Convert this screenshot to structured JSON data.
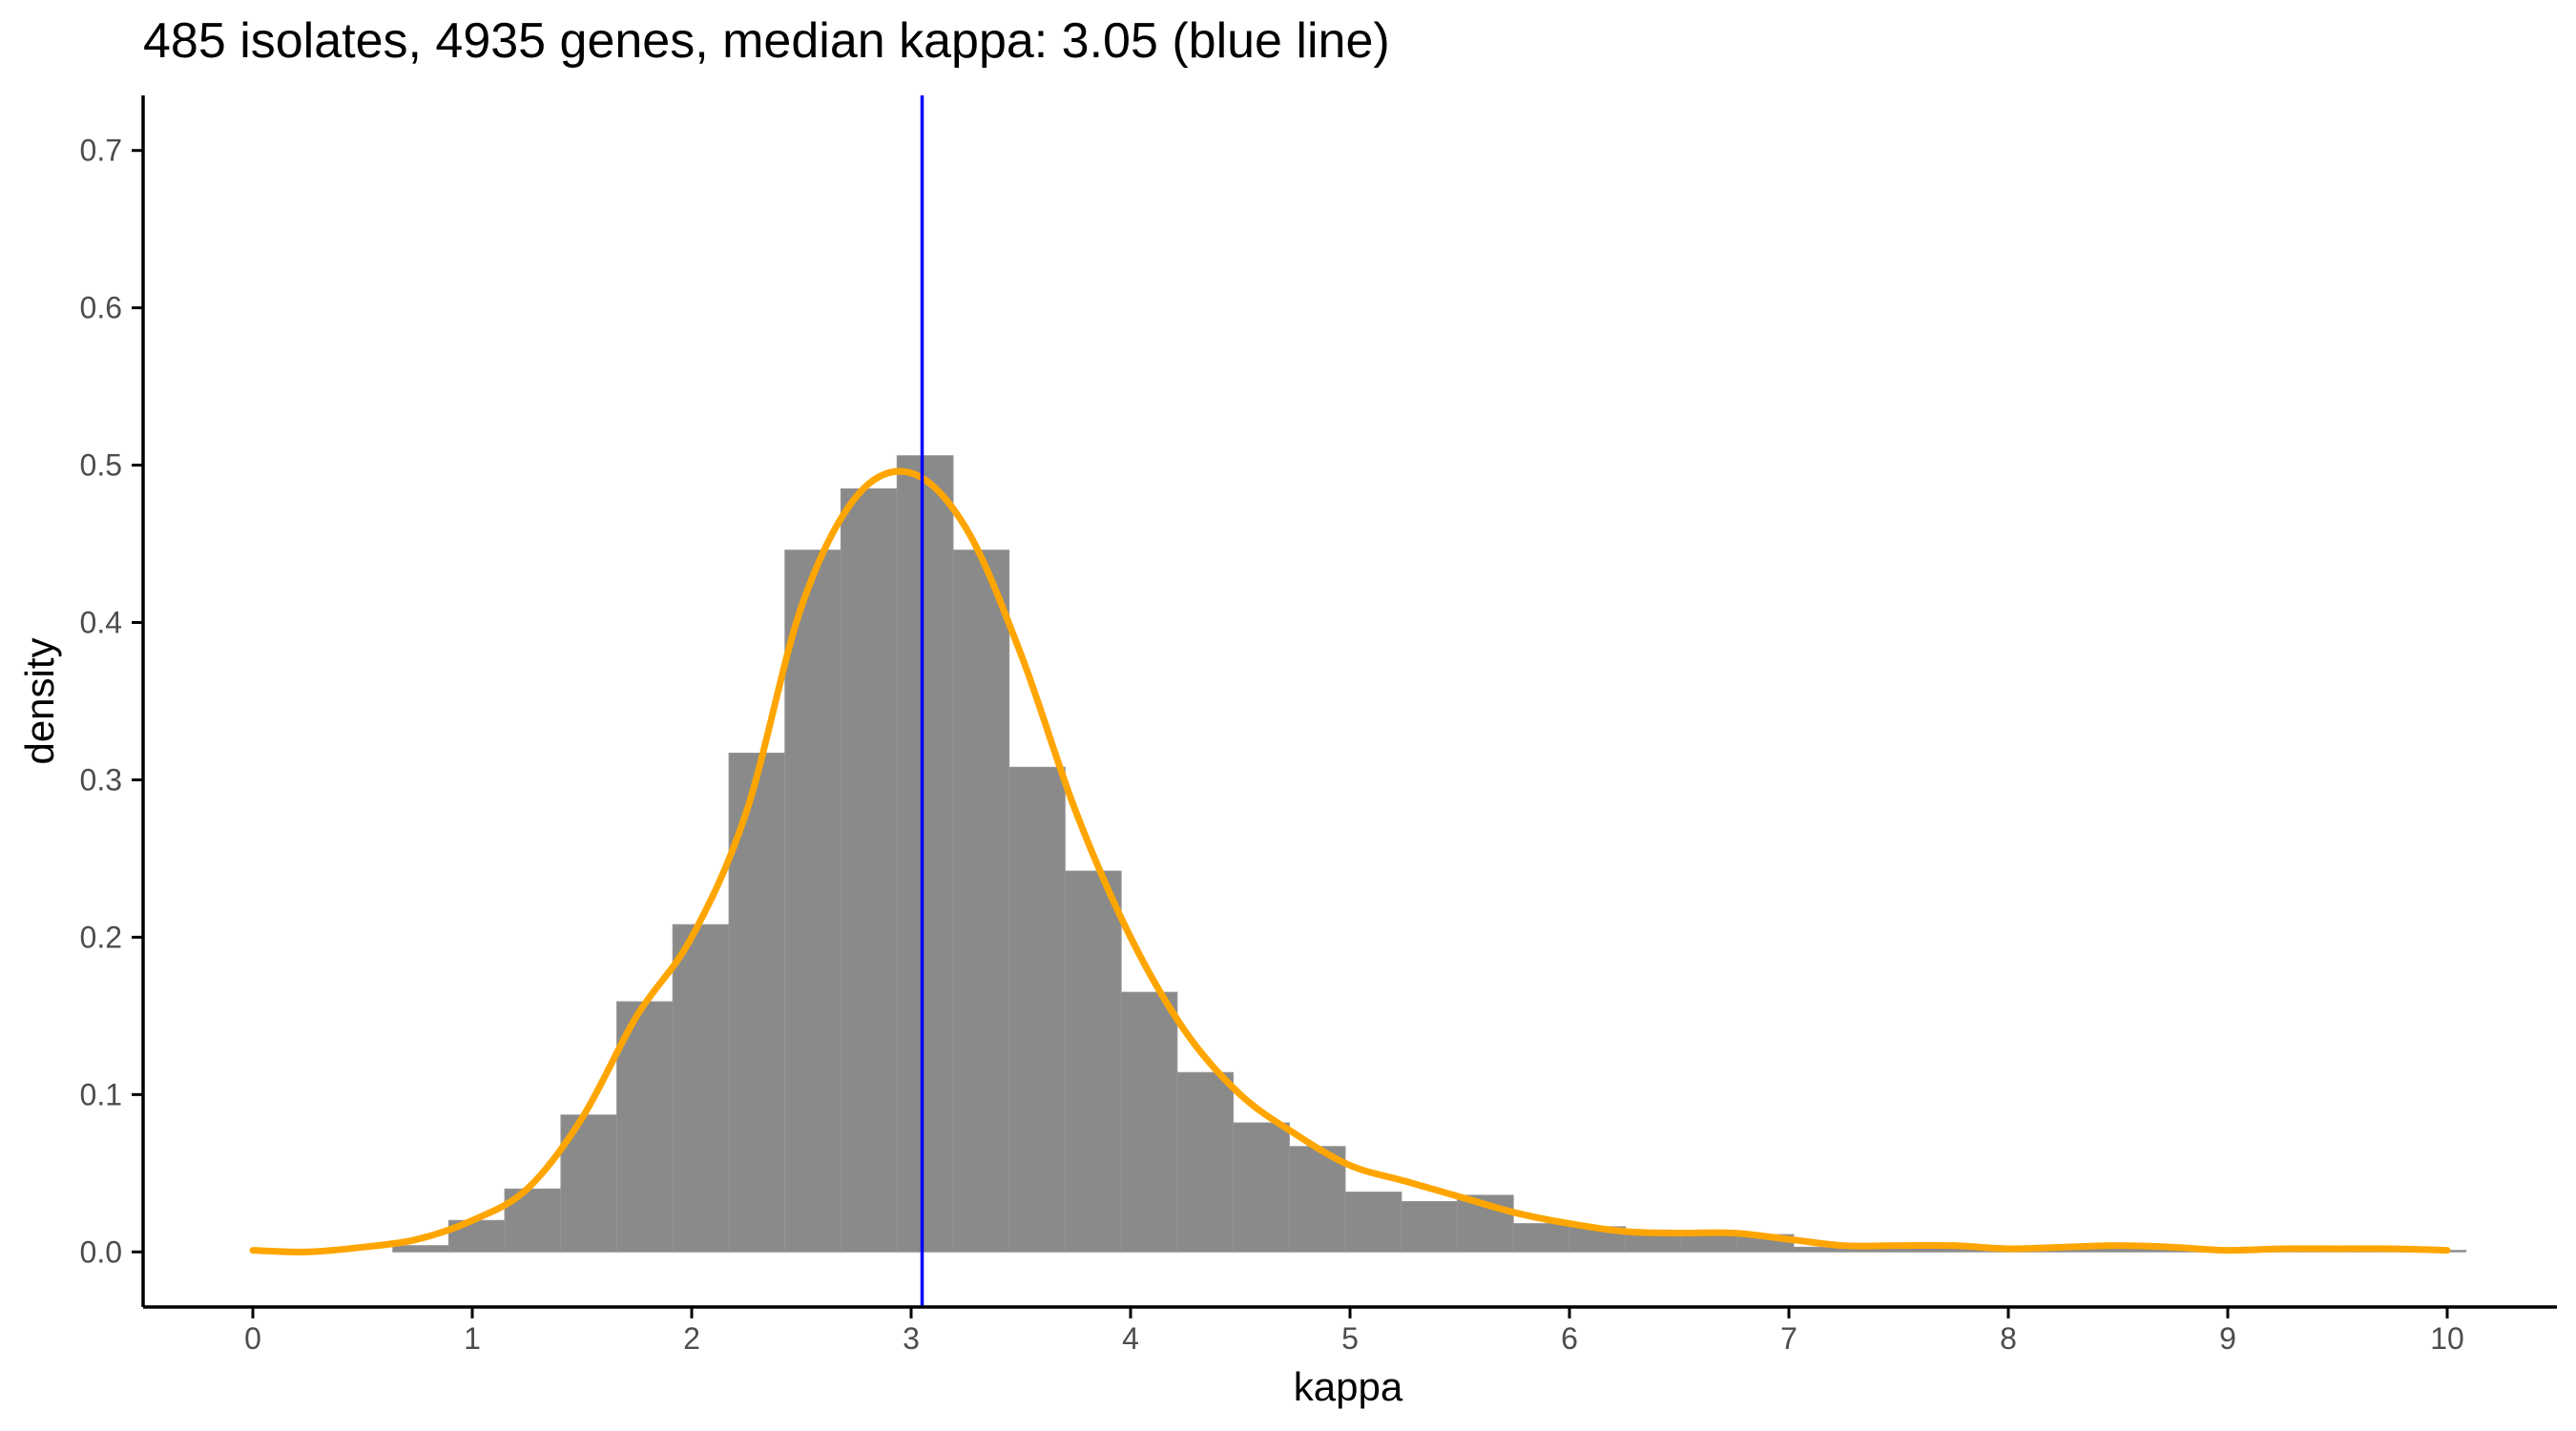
{
  "chart_data": {
    "type": "histogram",
    "title": "485 isolates, 4935 genes, median kappa: 3.05 (blue line)",
    "xlabel": "kappa",
    "ylabel": "density",
    "xlim": [
      -0.5,
      10.5
    ],
    "ylim": [
      -0.035,
      0.735
    ],
    "x_ticks": [
      0,
      1,
      2,
      3,
      4,
      5,
      6,
      7,
      8,
      9,
      10
    ],
    "y_ticks": [
      0.0,
      0.1,
      0.2,
      0.3,
      0.4,
      0.5,
      0.6,
      0.7
    ],
    "x_tick_labels": [
      "0",
      "1",
      "2",
      "3",
      "4",
      "5",
      "6",
      "7",
      "8",
      "9",
      "10"
    ],
    "y_tick_labels": [
      "0.0",
      "0.1",
      "0.2",
      "0.3",
      "0.4",
      "0.5",
      "0.6",
      "0.7"
    ],
    "grid": false,
    "bin_width": 0.2553,
    "bins": [
      {
        "start": 0.638,
        "density": 0.004
      },
      {
        "start": 0.893,
        "density": 0.02
      },
      {
        "start": 1.148,
        "density": 0.04
      },
      {
        "start": 1.404,
        "density": 0.087
      },
      {
        "start": 1.659,
        "density": 0.159
      },
      {
        "start": 1.914,
        "density": 0.208
      },
      {
        "start": 2.17,
        "density": 0.317
      },
      {
        "start": 2.425,
        "density": 0.446
      },
      {
        "start": 2.68,
        "density": 0.485
      },
      {
        "start": 2.936,
        "density": 0.506
      },
      {
        "start": 3.191,
        "density": 0.446
      },
      {
        "start": 3.446,
        "density": 0.308
      },
      {
        "start": 3.702,
        "density": 0.242
      },
      {
        "start": 3.957,
        "density": 0.165
      },
      {
        "start": 4.212,
        "density": 0.114
      },
      {
        "start": 4.468,
        "density": 0.082
      },
      {
        "start": 4.723,
        "density": 0.067
      },
      {
        "start": 4.979,
        "density": 0.038
      },
      {
        "start": 5.234,
        "density": 0.032
      },
      {
        "start": 5.489,
        "density": 0.036
      },
      {
        "start": 5.745,
        "density": 0.018
      },
      {
        "start": 6.0,
        "density": 0.016
      },
      {
        "start": 6.255,
        "density": 0.012
      },
      {
        "start": 6.511,
        "density": 0.013
      },
      {
        "start": 6.766,
        "density": 0.011
      },
      {
        "start": 7.021,
        "density": 0.003
      },
      {
        "start": 7.277,
        "density": 0.003
      },
      {
        "start": 7.532,
        "density": 0.005
      },
      {
        "start": 7.787,
        "density": 0.002
      },
      {
        "start": 8.043,
        "density": 0.002
      },
      {
        "start": 8.298,
        "density": 0.004
      },
      {
        "start": 8.553,
        "density": 0.002
      },
      {
        "start": 8.809,
        "density": 0.001
      },
      {
        "start": 9.064,
        "density": 0.002
      },
      {
        "start": 9.319,
        "density": 0.002
      },
      {
        "start": 9.574,
        "density": 0.001
      },
      {
        "start": 9.83,
        "density": 0.001
      }
    ],
    "density_curve": {
      "x": [
        0.0,
        0.25,
        0.5,
        0.75,
        1.0,
        1.25,
        1.5,
        1.75,
        2.0,
        2.25,
        2.5,
        2.75,
        3.0,
        3.25,
        3.5,
        3.75,
        4.0,
        4.25,
        4.5,
        4.75,
        5.0,
        5.25,
        5.5,
        5.75,
        6.0,
        6.25,
        6.5,
        6.75,
        7.0,
        7.25,
        7.5,
        7.75,
        8.0,
        8.25,
        8.5,
        8.75,
        9.0,
        9.25,
        9.5,
        9.75,
        10.0
      ],
      "y": [
        0.001,
        0.0,
        0.003,
        0.008,
        0.02,
        0.04,
        0.085,
        0.15,
        0.2,
        0.28,
        0.41,
        0.48,
        0.495,
        0.46,
        0.38,
        0.28,
        0.2,
        0.14,
        0.1,
        0.075,
        0.055,
        0.045,
        0.035,
        0.025,
        0.018,
        0.013,
        0.012,
        0.012,
        0.008,
        0.004,
        0.004,
        0.004,
        0.002,
        0.003,
        0.004,
        0.003,
        0.001,
        0.002,
        0.002,
        0.002,
        0.001
      ],
      "color": "#ffa500"
    },
    "median": {
      "value": 3.05,
      "color": "#0000ff"
    },
    "bar_color": "#8a8a8a"
  }
}
